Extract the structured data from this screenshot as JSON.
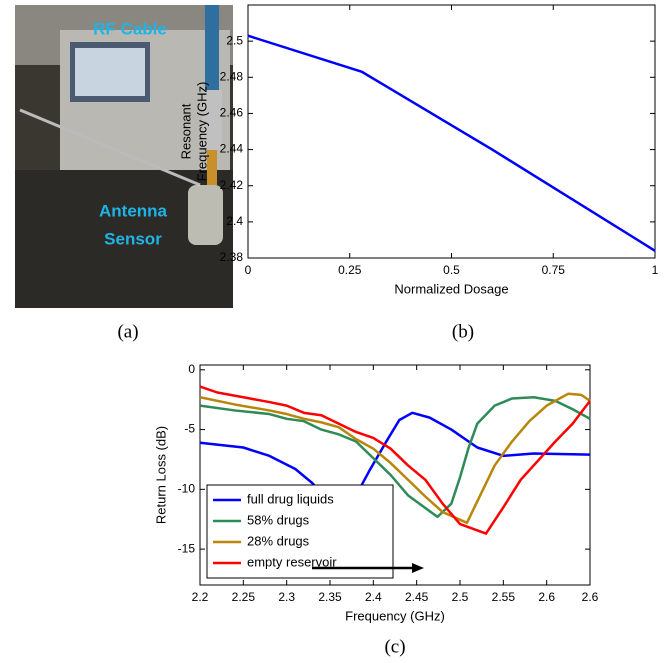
{
  "photo": {
    "cable_label": "RF Cable",
    "antenna_label": [
      "Antenna",
      "Sensor"
    ]
  },
  "captions": [
    "(a)",
    "(b)",
    "(c)"
  ],
  "chart_data": [
    {
      "type": "line",
      "xlabel": "Normalized Dosage",
      "ylabel": [
        "Resonant",
        "Frequency (GHz)"
      ],
      "xlim": [
        0,
        1
      ],
      "xticks": [
        0,
        0.25,
        0.5,
        0.75,
        1
      ],
      "ylim": [
        2.38,
        2.52
      ],
      "yticks": [
        2.38,
        2.4,
        2.42,
        2.44,
        2.46,
        2.48,
        2.5
      ],
      "grid": false,
      "series": [
        {
          "color": "#0000ff",
          "x": [
            0,
            0.28,
            0.6,
            1
          ],
          "values": [
            2.503,
            2.483,
            2.44,
            2.384
          ]
        }
      ]
    },
    {
      "type": "line",
      "xlabel": "Frequency (GHz)",
      "ylabel": "Return Loss (dB)",
      "xlim": [
        2.2,
        2.65
      ],
      "xticks": [
        2.2,
        2.25,
        2.3,
        2.35,
        2.4,
        2.45,
        2.5,
        2.55,
        2.6,
        {
          "value": 2.65,
          "label": "2.6"
        }
      ],
      "ylim": [
        -18,
        0.4
      ],
      "yticks": [
        -15,
        -10,
        -5,
        0
      ],
      "grid": false,
      "legend": "lower left",
      "series": [
        {
          "name": "full drug liquids",
          "color": "#0000ff",
          "x": [
            2.2,
            2.25,
            2.28,
            2.31,
            2.33,
            2.345,
            2.355,
            2.375,
            2.395,
            2.415,
            2.43,
            2.445,
            2.465,
            2.49,
            2.52,
            2.55,
            2.585,
            2.65
          ],
          "values": [
            -6.1,
            -6.5,
            -7.2,
            -8.3,
            -9.5,
            -10.8,
            -12.1,
            -11.2,
            -8.5,
            -6,
            -4.2,
            -3.6,
            -4,
            -5,
            -6.5,
            -7.2,
            -7,
            -7.1
          ]
        },
        {
          "name": "58% drugs",
          "color": "#2e8b57",
          "x": [
            2.2,
            2.24,
            2.28,
            2.3,
            2.32,
            2.34,
            2.36,
            2.38,
            2.4,
            2.42,
            2.44,
            2.474,
            2.49,
            2.5,
            2.51,
            2.52,
            2.54,
            2.56,
            2.585,
            2.61,
            2.63,
            2.65
          ],
          "values": [
            -3,
            -3.4,
            -3.7,
            -4.1,
            -4.3,
            -5,
            -5.4,
            -6,
            -7.4,
            -8.8,
            -10.5,
            -12.3,
            -11.2,
            -9,
            -6.5,
            -4.5,
            -3,
            -2.4,
            -2.3,
            -2.6,
            -3.3,
            -4.1
          ]
        },
        {
          "name": "28% drugs",
          "color": "#b8860b",
          "x": [
            2.2,
            2.24,
            2.28,
            2.3,
            2.32,
            2.34,
            2.36,
            2.38,
            2.4,
            2.42,
            2.44,
            2.46,
            2.48,
            2.508,
            2.52,
            2.54,
            2.56,
            2.58,
            2.6,
            2.625,
            2.64,
            2.65
          ],
          "values": [
            -2.3,
            -2.9,
            -3.4,
            -3.7,
            -4.1,
            -4.4,
            -4.8,
            -5.8,
            -6.6,
            -7.8,
            -9.2,
            -10.6,
            -11.9,
            -12.8,
            -11,
            -8,
            -6,
            -4.3,
            -3,
            -2,
            -2.1,
            -2.6
          ]
        },
        {
          "name": "empty reservoir",
          "color": "#ff0000",
          "x": [
            2.2,
            2.22,
            2.25,
            2.28,
            2.3,
            2.32,
            2.34,
            2.36,
            2.38,
            2.4,
            2.42,
            2.44,
            2.46,
            2.48,
            2.5,
            2.53,
            2.55,
            2.57,
            2.59,
            2.61,
            2.63,
            2.65
          ],
          "values": [
            -1.4,
            -1.9,
            -2.3,
            -2.7,
            -3,
            -3.6,
            -3.8,
            -4.5,
            -5.2,
            -5.7,
            -6.6,
            -8,
            -9.2,
            -11.2,
            -12.9,
            -13.7,
            -11.5,
            -9.2,
            -7.6,
            -6,
            -4.5,
            -2.6
          ]
        }
      ]
    }
  ]
}
